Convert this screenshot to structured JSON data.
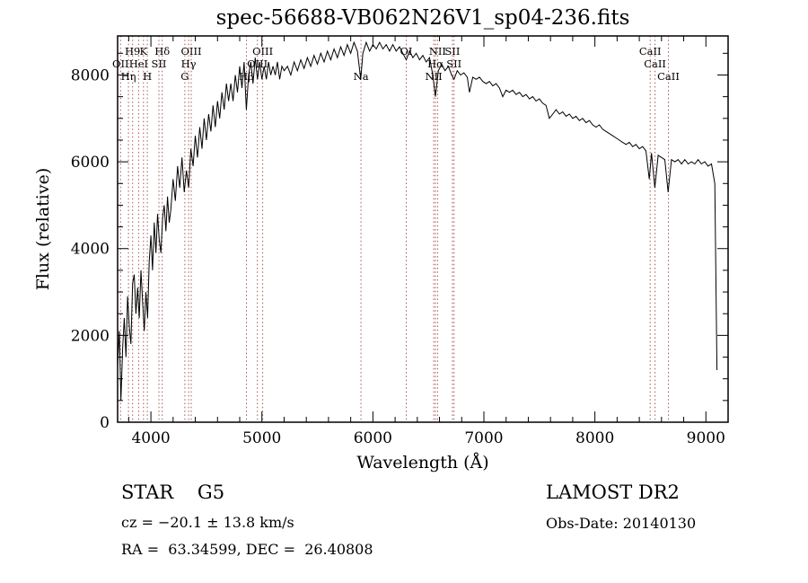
{
  "title": "spec-56688-VB062N26V1_sp04-236.fits",
  "chart_data": {
    "type": "line",
    "title": "spec-56688-VB062N26V1_sp04-236.fits",
    "xlabel": "Wavelength (Å)",
    "ylabel": "Flux (relative)",
    "xlim": [
      3700,
      9200
    ],
    "ylim": [
      0,
      8900
    ],
    "x_ticks": [
      4000,
      5000,
      6000,
      7000,
      8000,
      9000
    ],
    "y_ticks": [
      0,
      2000,
      4000,
      6000,
      8000
    ],
    "line_color": "#000000",
    "marker_color": "#aa5555",
    "legend": "none",
    "grid": "off",
    "line_markers": [
      {
        "wavelength": 3835,
        "label": "H9",
        "row": 1
      },
      {
        "wavelength": 3933,
        "label": "K",
        "row": 1
      },
      {
        "wavelength": 4102,
        "label": "Hδ",
        "row": 1
      },
      {
        "wavelength": 3727,
        "label": "OII",
        "row": 2
      },
      {
        "wavelength": 3889,
        "label": "HeI",
        "row": 2
      },
      {
        "wavelength": 4072,
        "label": "SII",
        "row": 2
      },
      {
        "wavelength": 3798,
        "label": "Hη",
        "row": 3
      },
      {
        "wavelength": 3968,
        "label": "H",
        "row": 3
      },
      {
        "wavelength": 4363,
        "label": "OIII",
        "row": 1
      },
      {
        "wavelength": 4340,
        "label": "Hγ",
        "row": 2
      },
      {
        "wavelength": 4306,
        "label": "G",
        "row": 3
      },
      {
        "wavelength": 5007,
        "label": "OIII",
        "row": 1
      },
      {
        "wavelength": 4959,
        "label": "OIII",
        "row": 2
      },
      {
        "wavelength": 4861,
        "label": "Hβ",
        "row": 3
      },
      {
        "wavelength": 5893,
        "label": "Na",
        "row": 3
      },
      {
        "wavelength": 6300,
        "label": "OI",
        "row": 1
      },
      {
        "wavelength": 6583,
        "label": "NII",
        "row": 1
      },
      {
        "wavelength": 6716,
        "label": "SII",
        "row": 1
      },
      {
        "wavelength": 6563,
        "label": "Hα",
        "row": 2
      },
      {
        "wavelength": 6731,
        "label": "SII",
        "row": 2
      },
      {
        "wavelength": 6548,
        "label": "NII",
        "row": 3
      },
      {
        "wavelength": 8498,
        "label": "CaII",
        "row": 1
      },
      {
        "wavelength": 8542,
        "label": "CaII",
        "row": 2
      },
      {
        "wavelength": 8662,
        "label": "CaII",
        "row": 3
      }
    ],
    "series": [
      {
        "name": "spectrum",
        "points": [
          [
            3700,
            1300
          ],
          [
            3715,
            2100
          ],
          [
            3730,
            500
          ],
          [
            3745,
            1700
          ],
          [
            3760,
            2400
          ],
          [
            3775,
            1500
          ],
          [
            3790,
            2900
          ],
          [
            3805,
            2200
          ],
          [
            3820,
            1800
          ],
          [
            3835,
            3200
          ],
          [
            3850,
            3400
          ],
          [
            3865,
            2500
          ],
          [
            3880,
            3100
          ],
          [
            3895,
            2400
          ],
          [
            3910,
            3500
          ],
          [
            3925,
            2800
          ],
          [
            3940,
            2100
          ],
          [
            3955,
            3000
          ],
          [
            3970,
            2400
          ],
          [
            3985,
            3700
          ],
          [
            4000,
            4300
          ],
          [
            4015,
            3500
          ],
          [
            4030,
            4600
          ],
          [
            4045,
            3900
          ],
          [
            4060,
            4800
          ],
          [
            4075,
            4200
          ],
          [
            4090,
            3900
          ],
          [
            4105,
            4700
          ],
          [
            4120,
            5000
          ],
          [
            4135,
            4400
          ],
          [
            4150,
            5200
          ],
          [
            4165,
            4600
          ],
          [
            4180,
            4900
          ],
          [
            4200,
            5600
          ],
          [
            4220,
            5100
          ],
          [
            4240,
            5900
          ],
          [
            4260,
            5400
          ],
          [
            4280,
            6100
          ],
          [
            4300,
            5300
          ],
          [
            4320,
            5800
          ],
          [
            4340,
            5400
          ],
          [
            4360,
            6300
          ],
          [
            4380,
            5900
          ],
          [
            4400,
            6600
          ],
          [
            4420,
            6100
          ],
          [
            4440,
            6800
          ],
          [
            4460,
            6300
          ],
          [
            4480,
            7000
          ],
          [
            4500,
            6500
          ],
          [
            4520,
            7100
          ],
          [
            4540,
            6700
          ],
          [
            4560,
            7300
          ],
          [
            4580,
            6800
          ],
          [
            4600,
            7400
          ],
          [
            4620,
            7000
          ],
          [
            4640,
            7600
          ],
          [
            4660,
            7200
          ],
          [
            4680,
            7800
          ],
          [
            4700,
            7400
          ],
          [
            4720,
            7800
          ],
          [
            4740,
            7400
          ],
          [
            4760,
            8000
          ],
          [
            4780,
            7600
          ],
          [
            4800,
            8200
          ],
          [
            4820,
            7700
          ],
          [
            4840,
            8300
          ],
          [
            4860,
            7200
          ],
          [
            4880,
            8000
          ],
          [
            4900,
            8300
          ],
          [
            4920,
            7800
          ],
          [
            4940,
            8400
          ],
          [
            4960,
            7900
          ],
          [
            4980,
            8300
          ],
          [
            5000,
            7900
          ],
          [
            5020,
            8200
          ],
          [
            5040,
            7900
          ],
          [
            5060,
            8300
          ],
          [
            5080,
            8000
          ],
          [
            5100,
            8200
          ],
          [
            5120,
            8000
          ],
          [
            5140,
            8300
          ],
          [
            5160,
            7900
          ],
          [
            5180,
            8200
          ],
          [
            5200,
            8100
          ],
          [
            5230,
            8200
          ],
          [
            5260,
            8000
          ],
          [
            5290,
            8300
          ],
          [
            5320,
            8100
          ],
          [
            5350,
            8350
          ],
          [
            5380,
            8150
          ],
          [
            5410,
            8400
          ],
          [
            5440,
            8200
          ],
          [
            5470,
            8450
          ],
          [
            5500,
            8250
          ],
          [
            5530,
            8500
          ],
          [
            5560,
            8300
          ],
          [
            5590,
            8550
          ],
          [
            5620,
            8350
          ],
          [
            5650,
            8600
          ],
          [
            5680,
            8400
          ],
          [
            5710,
            8650
          ],
          [
            5740,
            8450
          ],
          [
            5770,
            8700
          ],
          [
            5800,
            8500
          ],
          [
            5830,
            8750
          ],
          [
            5860,
            8550
          ],
          [
            5890,
            7900
          ],
          [
            5910,
            8500
          ],
          [
            5940,
            8750
          ],
          [
            5970,
            8550
          ],
          [
            6000,
            8700
          ],
          [
            6030,
            8600
          ],
          [
            6060,
            8750
          ],
          [
            6090,
            8600
          ],
          [
            6120,
            8700
          ],
          [
            6150,
            8550
          ],
          [
            6180,
            8700
          ],
          [
            6210,
            8550
          ],
          [
            6240,
            8650
          ],
          [
            6270,
            8500
          ],
          [
            6300,
            8350
          ],
          [
            6330,
            8550
          ],
          [
            6360,
            8400
          ],
          [
            6390,
            8500
          ],
          [
            6420,
            8350
          ],
          [
            6450,
            8450
          ],
          [
            6480,
            8300
          ],
          [
            6510,
            8400
          ],
          [
            6540,
            8000
          ],
          [
            6563,
            7500
          ],
          [
            6590,
            8100
          ],
          [
            6620,
            8250
          ],
          [
            6650,
            8100
          ],
          [
            6680,
            8200
          ],
          [
            6710,
            8000
          ],
          [
            6731,
            7900
          ],
          [
            6760,
            8100
          ],
          [
            6790,
            8000
          ],
          [
            6820,
            8050
          ],
          [
            6850,
            7950
          ],
          [
            6870,
            7600
          ],
          [
            6900,
            7950
          ],
          [
            6930,
            7900
          ],
          [
            6960,
            7950
          ],
          [
            6990,
            7850
          ],
          [
            7020,
            7800
          ],
          [
            7050,
            7850
          ],
          [
            7080,
            7750
          ],
          [
            7110,
            7800
          ],
          [
            7140,
            7700
          ],
          [
            7170,
            7500
          ],
          [
            7200,
            7650
          ],
          [
            7230,
            7600
          ],
          [
            7260,
            7650
          ],
          [
            7290,
            7550
          ],
          [
            7320,
            7600
          ],
          [
            7350,
            7500
          ],
          [
            7380,
            7550
          ],
          [
            7410,
            7450
          ],
          [
            7440,
            7500
          ],
          [
            7470,
            7400
          ],
          [
            7500,
            7450
          ],
          [
            7530,
            7350
          ],
          [
            7560,
            7300
          ],
          [
            7590,
            7000
          ],
          [
            7620,
            7100
          ],
          [
            7650,
            7200
          ],
          [
            7680,
            7100
          ],
          [
            7710,
            7150
          ],
          [
            7740,
            7050
          ],
          [
            7770,
            7100
          ],
          [
            7800,
            7000
          ],
          [
            7830,
            7050
          ],
          [
            7860,
            6950
          ],
          [
            7890,
            7000
          ],
          [
            7920,
            6900
          ],
          [
            7950,
            6950
          ],
          [
            7980,
            6850
          ],
          [
            8010,
            6800
          ],
          [
            8040,
            6850
          ],
          [
            8070,
            6750
          ],
          [
            8100,
            6700
          ],
          [
            8130,
            6650
          ],
          [
            8160,
            6600
          ],
          [
            8190,
            6550
          ],
          [
            8220,
            6500
          ],
          [
            8250,
            6450
          ],
          [
            8280,
            6400
          ],
          [
            8310,
            6450
          ],
          [
            8340,
            6350
          ],
          [
            8370,
            6400
          ],
          [
            8400,
            6300
          ],
          [
            8430,
            6350
          ],
          [
            8460,
            6250
          ],
          [
            8490,
            5600
          ],
          [
            8510,
            6200
          ],
          [
            8540,
            5400
          ],
          [
            8570,
            6150
          ],
          [
            8600,
            6100
          ],
          [
            8630,
            6050
          ],
          [
            8660,
            5300
          ],
          [
            8690,
            6050
          ],
          [
            8720,
            6000
          ],
          [
            8750,
            6050
          ],
          [
            8780,
            5950
          ],
          [
            8810,
            6050
          ],
          [
            8840,
            5950
          ],
          [
            8870,
            6000
          ],
          [
            8900,
            5950
          ],
          [
            8930,
            6050
          ],
          [
            8960,
            5950
          ],
          [
            8990,
            6000
          ],
          [
            9020,
            5900
          ],
          [
            9050,
            5950
          ],
          [
            9080,
            5500
          ],
          [
            9100,
            1200
          ]
        ]
      }
    ]
  },
  "annotations": {
    "class_label": "STAR    G5",
    "survey": "LAMOST DR2",
    "cz": "cz = −20.1 ± 13.8 km/s",
    "obs_date": "Obs-Date: 20140130",
    "ra_dec": "RA =  63.34599, DEC =  26.40808"
  }
}
